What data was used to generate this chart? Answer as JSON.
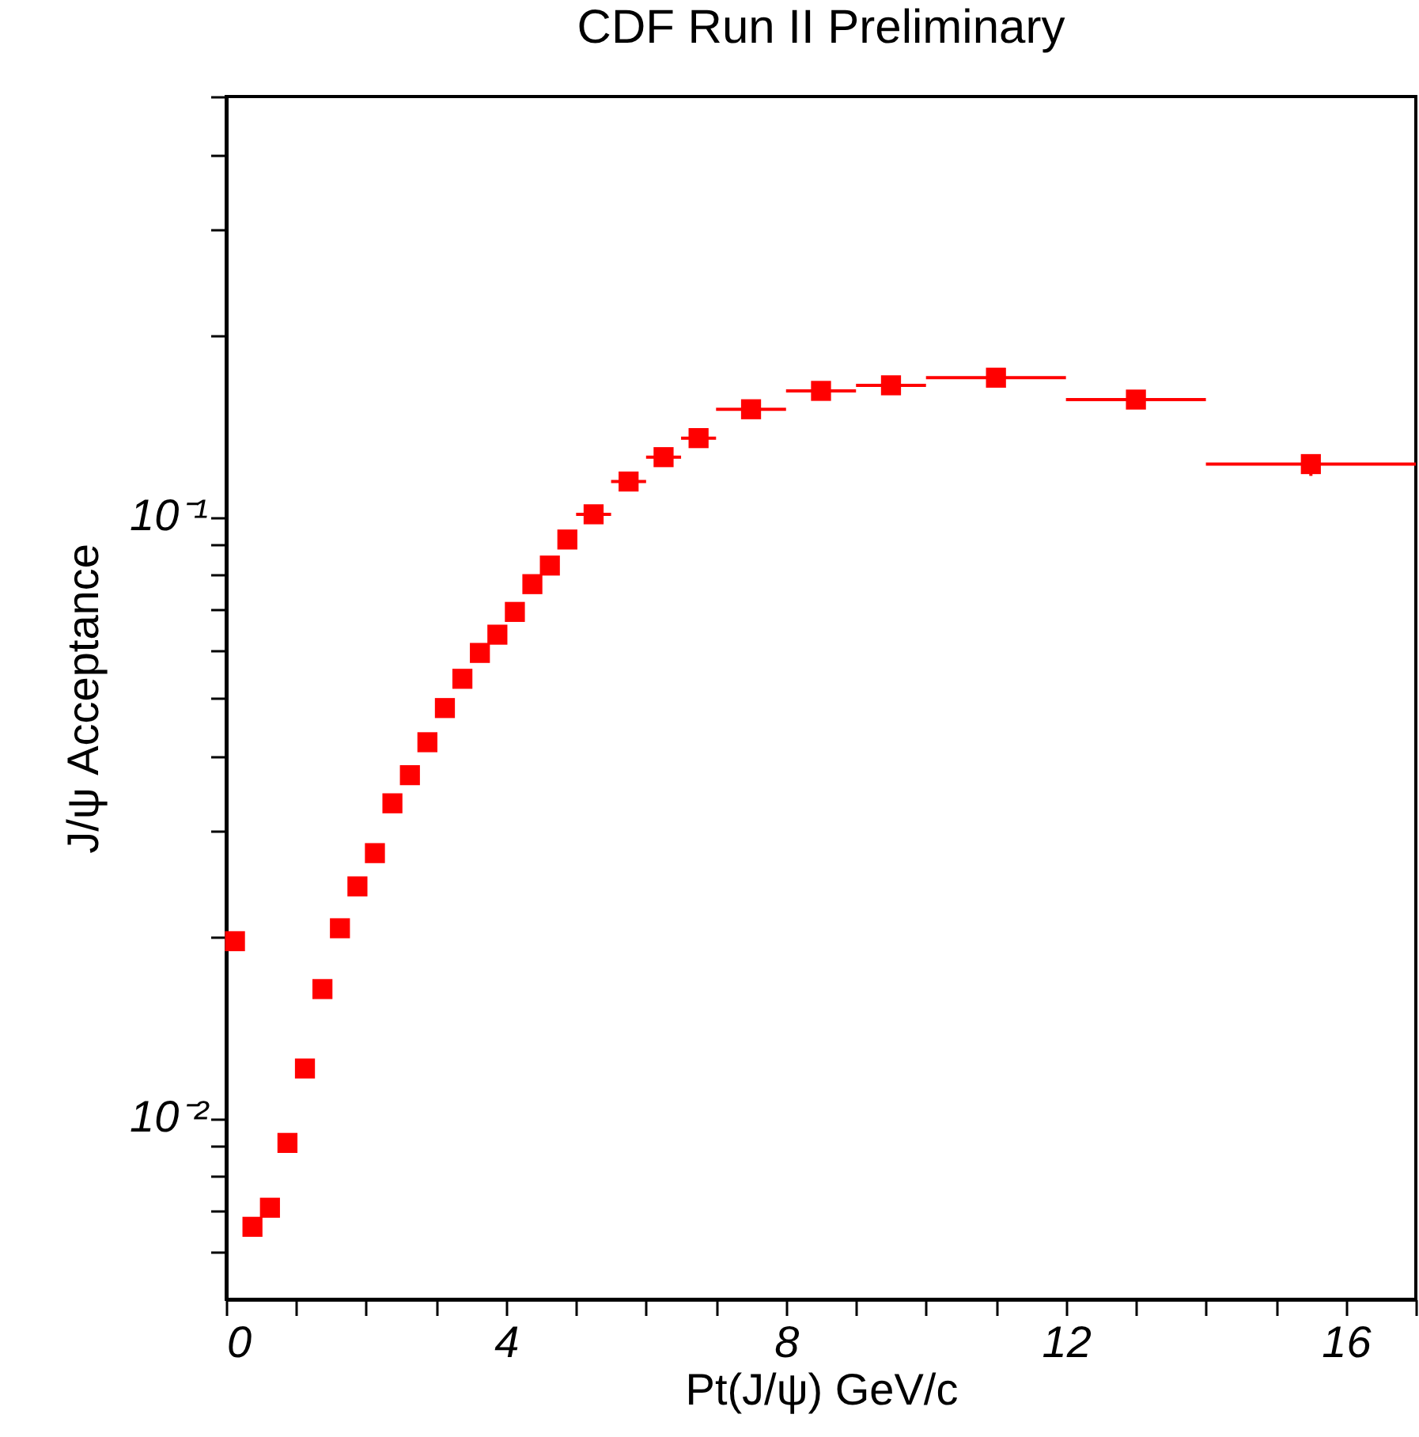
{
  "chart_data": {
    "type": "scatter",
    "title": "CDF Run II Preliminary",
    "xlabel": "Pt(J/ψ) GeV/c",
    "ylabel": "J/ψ Acceptance",
    "log": "y",
    "marker": "square",
    "xlim": [
      0,
      17
    ],
    "xticks": [
      0,
      {
        "value": 1,
        "label": null
      },
      {
        "value": 2,
        "label": null
      },
      {
        "value": 3,
        "label": null
      },
      4,
      {
        "value": 5,
        "label": null
      },
      {
        "value": 6,
        "label": null
      },
      {
        "value": 7,
        "label": null
      },
      8,
      {
        "value": 9,
        "label": null
      },
      {
        "value": 10,
        "label": null
      },
      {
        "value": 11,
        "label": null
      },
      12,
      {
        "value": 13,
        "label": null
      },
      {
        "value": 14,
        "label": null
      },
      {
        "value": 15,
        "label": null
      },
      16,
      {
        "value": 17,
        "label": null
      }
    ],
    "ylim": [
      0.005,
      0.5
    ],
    "yticks": [
      {
        "value": 0.006,
        "label": null
      },
      {
        "value": 0.007,
        "label": null
      },
      {
        "value": 0.008,
        "label": null
      },
      {
        "value": 0.009,
        "label": null
      },
      {
        "value": 0.01,
        "label": "10⁻²"
      },
      {
        "value": 0.02,
        "label": null
      },
      {
        "value": 0.03,
        "label": null
      },
      {
        "value": 0.04,
        "label": null
      },
      {
        "value": 0.05,
        "label": null
      },
      {
        "value": 0.06,
        "label": null
      },
      {
        "value": 0.07,
        "label": null
      },
      {
        "value": 0.08,
        "label": null
      },
      {
        "value": 0.09,
        "label": null
      },
      {
        "value": 0.1,
        "label": "10⁻¹"
      },
      {
        "value": 0.2,
        "label": null
      },
      {
        "value": 0.3,
        "label": null
      },
      {
        "value": 0.4,
        "label": null
      },
      {
        "value": 0.5,
        "label": null
      }
    ],
    "series": [
      {
        "color": "#ff0000",
        "x": [
          0.125,
          0.375,
          0.625,
          0.875,
          1.125,
          1.375,
          1.625,
          1.875,
          2.125,
          2.375,
          2.625,
          2.875,
          3.125,
          3.375,
          3.625,
          3.875,
          4.125,
          4.375,
          4.625,
          4.875,
          5.25,
          5.75,
          6.25,
          6.75,
          7.5,
          8.5,
          9.5,
          11,
          13,
          15.5
        ],
        "values": [
          0.0197,
          0.0066,
          0.0071,
          0.0091,
          0.0121,
          0.0164,
          0.0207,
          0.0243,
          0.0276,
          0.0334,
          0.0372,
          0.0422,
          0.0481,
          0.0538,
          0.0594,
          0.0637,
          0.0695,
          0.0773,
          0.083,
          0.0917,
          0.101,
          0.1145,
          0.1257,
          0.1352,
          0.151,
          0.162,
          0.1655,
          0.1704,
          0.1567,
          0.1224
        ],
        "xerrors": [
          null,
          null,
          null,
          null,
          null,
          null,
          null,
          null,
          null,
          null,
          null,
          null,
          null,
          null,
          null,
          null,
          null,
          null,
          null,
          null,
          0.25,
          0.25,
          0.25,
          0.25,
          0.5,
          0.5,
          0.5,
          1,
          1,
          1.5
        ],
        "errors": [
          null,
          null,
          null,
          null,
          null,
          null,
          null,
          null,
          null,
          null,
          null,
          null,
          null,
          null,
          null,
          null,
          null,
          null,
          null,
          null,
          null,
          null,
          null,
          null,
          null,
          null,
          null,
          null,
          null,
          [
            0.117,
            0.127
          ]
        ]
      }
    ]
  }
}
